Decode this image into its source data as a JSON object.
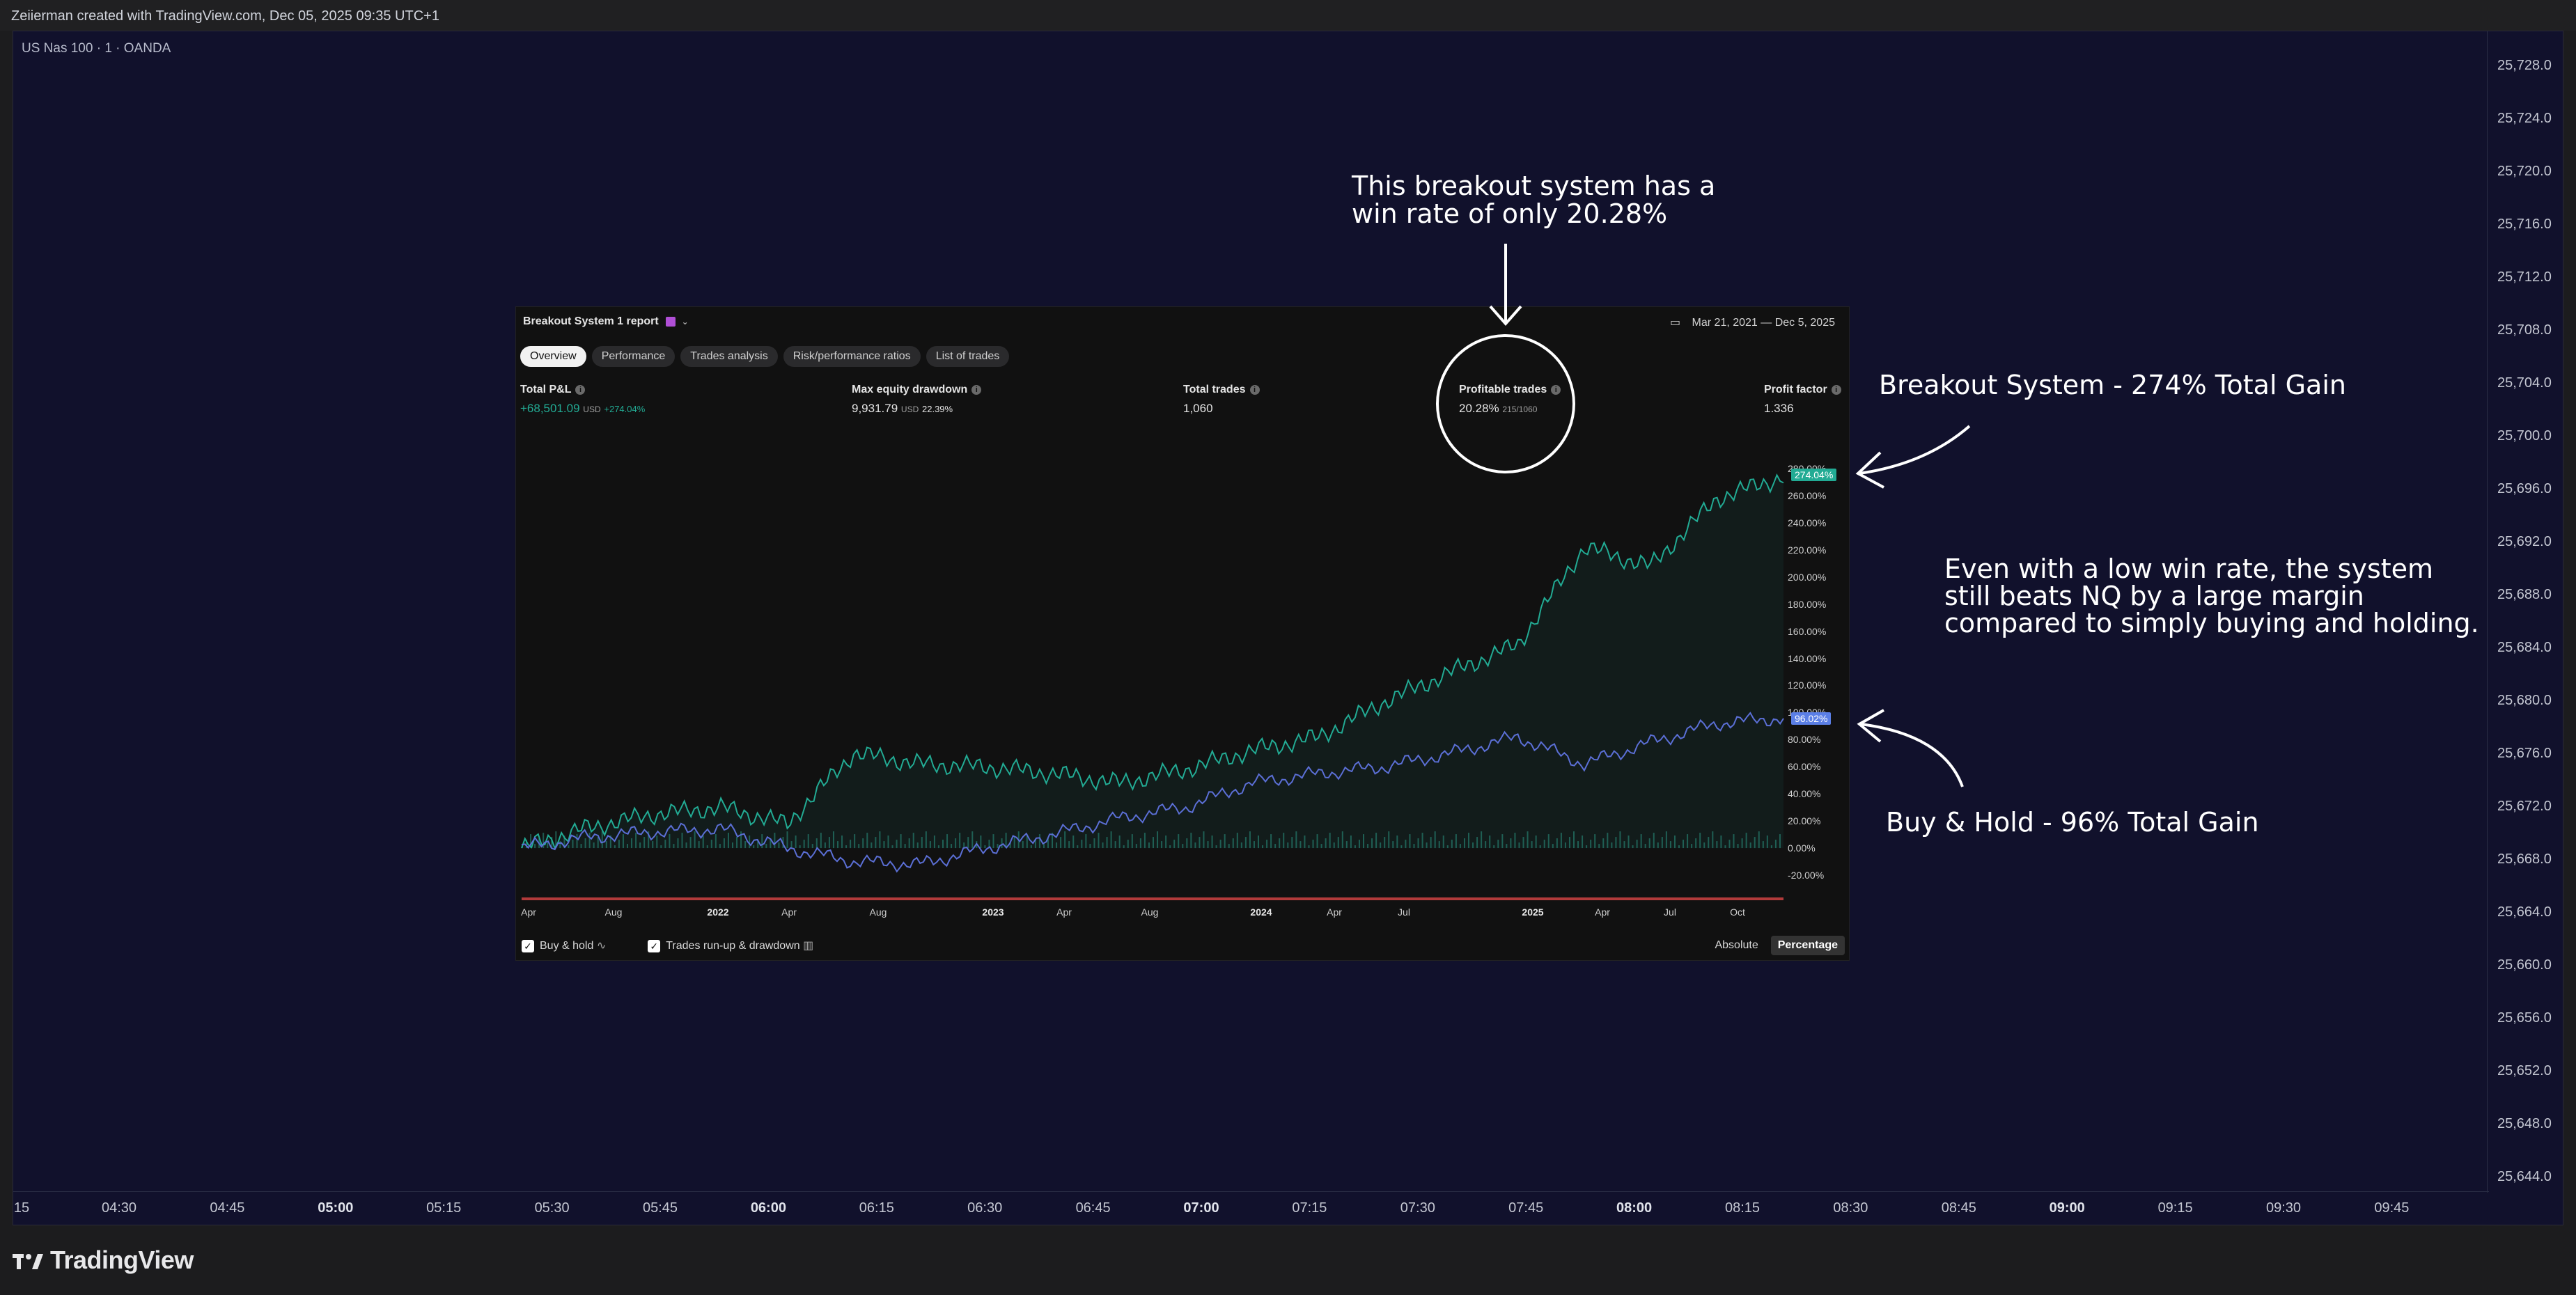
{
  "topbar": {
    "text": "Zeiierman created with TradingView.com, Dec 05, 2025 09:35 UTC+1"
  },
  "symbol": "US Nas 100 · 1 · OANDA",
  "price_axis": [
    "25,728.0",
    "25,724.0",
    "25,720.0",
    "25,716.0",
    "25,712.0",
    "25,708.0",
    "25,704.0",
    "25,700.0",
    "25,696.0",
    "25,692.0",
    "25,688.0",
    "25,684.0",
    "25,680.0",
    "25,676.0",
    "25,672.0",
    "25,668.0",
    "25,664.0",
    "25,660.0",
    "25,656.0",
    "25,652.0",
    "25,648.0",
    "25,644.0"
  ],
  "time_axis": [
    "15",
    "04:30",
    "04:45",
    "05:00",
    "05:15",
    "05:30",
    "05:45",
    "06:00",
    "06:15",
    "06:30",
    "06:45",
    "07:00",
    "07:15",
    "07:30",
    "07:45",
    "08:00",
    "08:15",
    "08:30",
    "08:45",
    "09:00",
    "09:15",
    "09:30",
    "09:45"
  ],
  "brand": "TradingView",
  "report": {
    "title": "Breakout System 1 report",
    "date_range": "Mar 21, 2021 — Dec 5, 2025",
    "tabs": [
      "Overview",
      "Performance",
      "Trades analysis",
      "Risk/performance ratios",
      "List of trades"
    ],
    "stats": {
      "total_pnl": {
        "label": "Total P&L",
        "value": "+68,501.09",
        "unit": "USD",
        "pct": "+274.04%"
      },
      "max_dd": {
        "label": "Max equity drawdown",
        "value": "9,931.79",
        "unit": "USD",
        "pct": "22.39%"
      },
      "total_trades": {
        "label": "Total trades",
        "value": "1,060"
      },
      "profitable": {
        "label": "Profitable trades",
        "value": "20.28%",
        "sub": "215/1060"
      },
      "profit_factor": {
        "label": "Profit factor",
        "value": "1.336"
      }
    },
    "pct_axis": [
      "280.00%",
      "260.00%",
      "240.00%",
      "220.00%",
      "200.00%",
      "180.00%",
      "160.00%",
      "140.00%",
      "120.00%",
      "100.00%",
      "80.00%",
      "60.00%",
      "40.00%",
      "20.00%",
      "0.00%",
      "-20.00%"
    ],
    "year_axis": [
      "Apr",
      "Aug",
      "2022",
      "Apr",
      "Aug",
      "2023",
      "Apr",
      "Aug",
      "2024",
      "Apr",
      "Jul",
      "2025",
      "Apr",
      "Jul",
      "Oct"
    ],
    "badges": {
      "strategy": "274.04%",
      "buyhold": "96.02%"
    },
    "legend": {
      "buy_hold": "Buy & hold",
      "runup": "Trades run-up & drawdown"
    },
    "modes": [
      "Absolute",
      "Percentage"
    ],
    "colors": {
      "strategy": "#22ab94",
      "buy_hold": "#5b6fd6",
      "drawdown": "#b23a3a"
    }
  },
  "annotations": {
    "top": [
      "This breakout system has a",
      "win rate of only 20.28%"
    ],
    "strategy": "Breakout System - 274% Total Gain",
    "middle": [
      "Even with a low win rate, the system",
      "still beats NQ by a large margin",
      "compared to simply buying and holding."
    ],
    "buyhold": "Buy & Hold - 96% Total Gain"
  },
  "chart_data": {
    "type": "line",
    "x": [
      "2021-03",
      "2021-06",
      "2021-09",
      "2021-12",
      "2022-03",
      "2022-06",
      "2022-09",
      "2022-12",
      "2023-03",
      "2023-06",
      "2023-09",
      "2023-12",
      "2024-03",
      "2024-06",
      "2024-09",
      "2024-12",
      "2025-03",
      "2025-06",
      "2025-09",
      "2025-12"
    ],
    "series": [
      {
        "name": "Breakout System 1",
        "values": [
          0,
          15,
          25,
          30,
          18,
          70,
          62,
          60,
          55,
          48,
          58,
          72,
          82,
          108,
          130,
          150,
          222,
          208,
          258,
          274
        ]
      },
      {
        "name": "Buy & hold",
        "values": [
          0,
          8,
          12,
          14,
          0,
          -10,
          -12,
          0,
          10,
          22,
          30,
          48,
          55,
          60,
          70,
          82,
          62,
          78,
          92,
          96
        ]
      }
    ],
    "ylim": [
      -20,
      280
    ]
  }
}
